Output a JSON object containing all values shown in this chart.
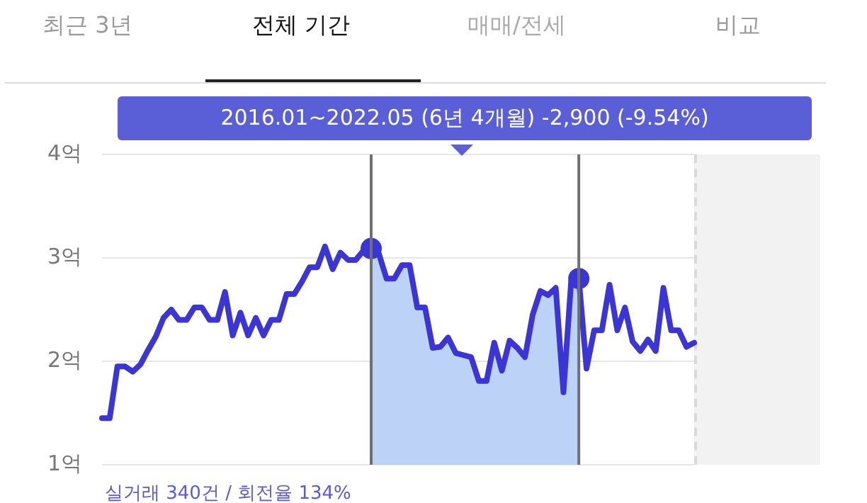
{
  "chart_data": {
    "type": "line",
    "annotations": [
      "최근 3년",
      "전체 기간",
      "매매/전세",
      "비교",
      "2016.01~2022.05 (6년 4개월)  -2,900 (-9.54%)",
      "실거래 340건 / 회전율 134%"
    ],
    "categories": [
      null,
      null,
      null,
      null,
      null,
      null,
      null,
      null,
      null,
      null,
      null,
      null,
      null,
      null,
      null,
      null,
      null,
      null,
      null,
      null,
      null,
      null,
      null,
      null,
      null,
      null,
      null,
      null,
      null,
      null,
      null,
      null,
      null,
      null,
      null,
      null,
      null,
      null,
      null,
      null,
      null,
      null,
      null,
      null,
      null,
      null,
      null,
      null,
      null,
      null,
      null,
      null,
      null,
      null,
      null,
      null,
      null,
      null,
      null,
      null,
      null,
      null,
      null,
      null,
      null,
      null,
      null,
      null,
      null,
      null,
      null,
      null,
      null,
      null,
      null,
      null,
      null,
      null
    ],
    "ylim": [
      1,
      4
    ],
    "yticks": [
      {
        "value": 1,
        "label": "1억"
      },
      {
        "value": 2,
        "label": "2억"
      },
      {
        "value": 3,
        "label": "3억"
      },
      {
        "value": 4,
        "label": "4억"
      }
    ],
    "tick_labels": "y",
    "grid": "y",
    "marker": "none",
    "line_style": "solid",
    "series": [
      {
        "color": "#3b35d6",
        "values": [
          1.45,
          1.45,
          1.95,
          1.95,
          1.9,
          1.97,
          2.11,
          2.24,
          2.42,
          2.5,
          2.4,
          2.4,
          2.52,
          2.52,
          2.4,
          2.4,
          2.67,
          2.25,
          2.47,
          2.25,
          2.42,
          2.25,
          2.4,
          2.4,
          2.65,
          2.65,
          2.77,
          2.91,
          2.91,
          3.11,
          2.89,
          3.05,
          2.98,
          2.98,
          3.07,
          3.09,
          3.04,
          2.8,
          2.8,
          2.93,
          2.93,
          2.52,
          2.52,
          2.13,
          2.14,
          2.23,
          2.08,
          2.06,
          2.04,
          1.81,
          1.81,
          2.18,
          1.91,
          2.2,
          2.13,
          2.04,
          2.45,
          2.68,
          2.64,
          2.71,
          1.7,
          2.77,
          2.8,
          1.93,
          2.3,
          2.3,
          2.74,
          2.3,
          2.52,
          2.19,
          2.1,
          2.21,
          2.1,
          2.71,
          2.3,
          2.3,
          2.14,
          2.18
        ]
      },
      {
        "type": "area",
        "color": "#bcd2f7",
        "values": [
          null,
          null,
          null,
          null,
          null,
          null,
          null,
          null,
          null,
          null,
          null,
          null,
          null,
          null,
          null,
          null,
          null,
          null,
          null,
          null,
          null,
          null,
          null,
          null,
          null,
          null,
          null,
          null,
          null,
          null,
          null,
          null,
          null,
          null,
          null,
          3.09,
          3.04,
          2.8,
          2.8,
          2.93,
          2.93,
          2.52,
          2.52,
          2.13,
          2.14,
          2.23,
          2.08,
          2.06,
          2.04,
          1.81,
          1.81,
          2.18,
          1.91,
          2.2,
          2.13,
          2.04,
          2.45,
          2.68,
          2.64,
          2.71,
          1.7,
          2.77,
          2.8,
          null,
          null,
          null,
          null,
          null,
          null,
          null,
          null,
          null,
          null,
          null,
          null,
          null,
          null,
          null
        ]
      },
      {
        "type": "scatter",
        "color": "#3b35d6",
        "marker": "circle",
        "values": [
          null,
          null,
          null,
          null,
          null,
          null,
          null,
          null,
          null,
          null,
          null,
          null,
          null,
          null,
          null,
          null,
          null,
          null,
          null,
          null,
          null,
          null,
          null,
          null,
          null,
          null,
          null,
          null,
          null,
          null,
          null,
          null,
          null,
          null,
          null,
          3.09,
          null,
          null,
          null,
          null,
          null,
          null,
          null,
          null,
          null,
          null,
          null,
          null,
          null,
          null,
          null,
          null,
          null,
          null,
          null,
          null,
          null,
          null,
          null,
          null,
          null,
          null,
          2.8,
          null,
          null,
          null,
          null,
          null,
          null,
          null,
          null,
          null,
          null,
          null,
          null,
          null,
          null,
          null
        ]
      }
    ]
  }
}
